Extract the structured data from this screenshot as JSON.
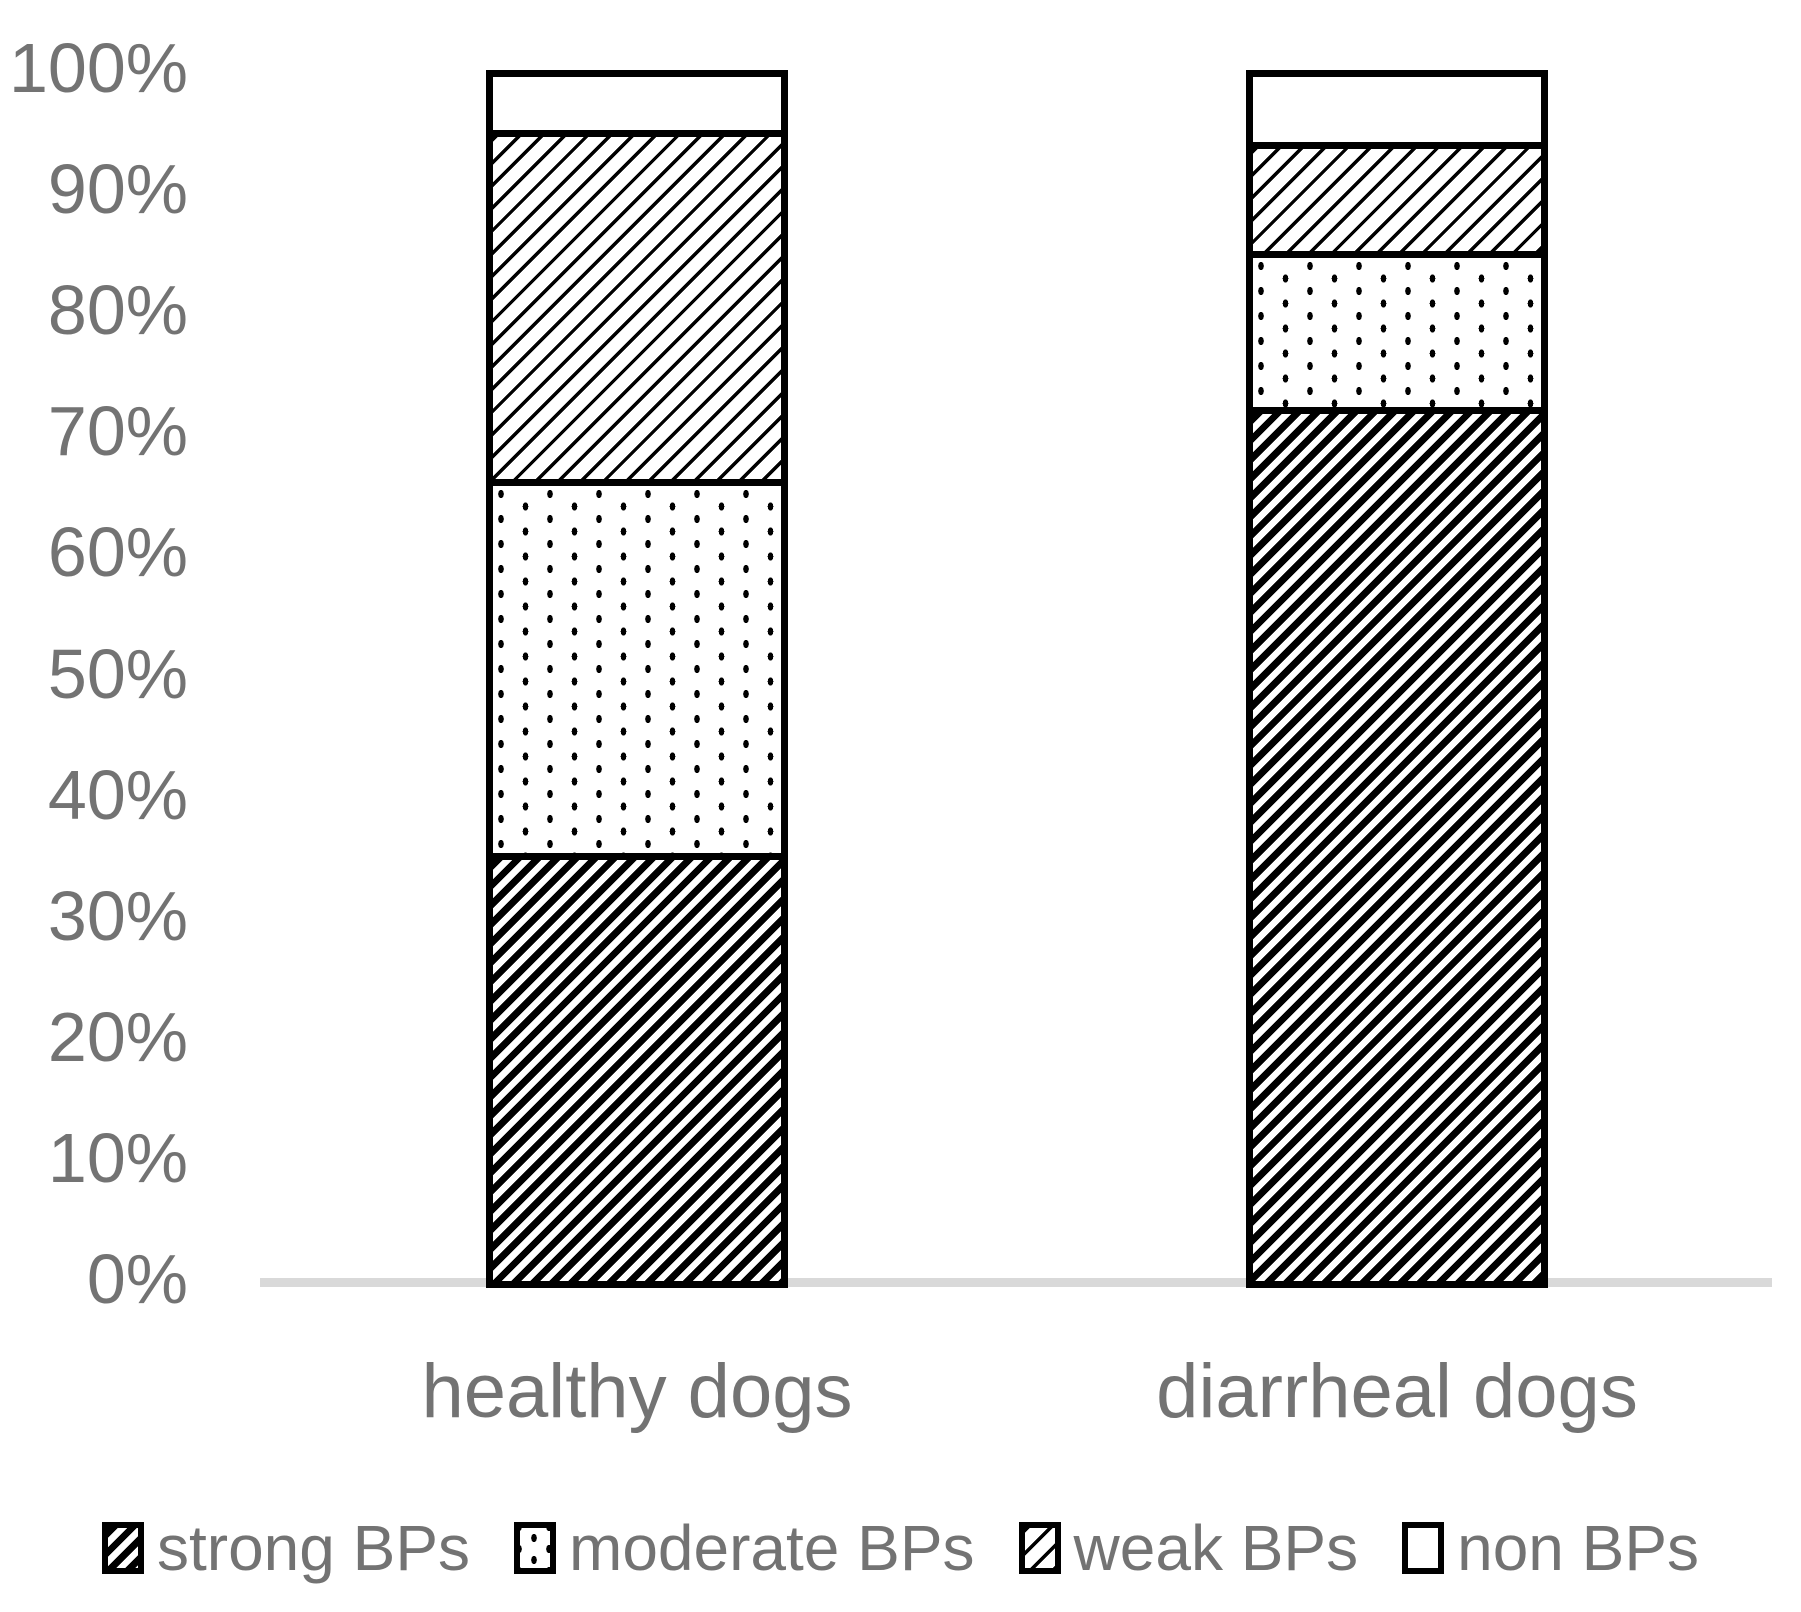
{
  "chart_data": {
    "type": "bar",
    "stacked": true,
    "units": "percent",
    "categories": [
      "healthy dogs",
      "diarrheal dogs"
    ],
    "series": [
      {
        "name": "strong BPs",
        "pattern": "dense-diagonal-hatch",
        "values": [
          35,
          72
        ]
      },
      {
        "name": "moderate BPs",
        "pattern": "sparse-dots",
        "values": [
          31,
          13
        ]
      },
      {
        "name": "weak BPs",
        "pattern": "light-diagonal-hatch",
        "values": [
          29,
          9
        ]
      },
      {
        "name": "non BPs",
        "pattern": "plain-white",
        "values": [
          5,
          6
        ]
      }
    ],
    "yticks": [
      "0%",
      "10%",
      "20%",
      "30%",
      "40%",
      "50%",
      "60%",
      "70%",
      "80%",
      "90%",
      "100%"
    ],
    "ylim": [
      0,
      100
    ],
    "xlabel": "",
    "ylabel": "",
    "grid": false,
    "legend_position": "bottom",
    "colors": {
      "pattern_foreground": "#000000",
      "pattern_background": "#ffffff",
      "bar_border": "#000000",
      "axis_text": "#737373",
      "baseline": "#d9d9d9"
    }
  }
}
